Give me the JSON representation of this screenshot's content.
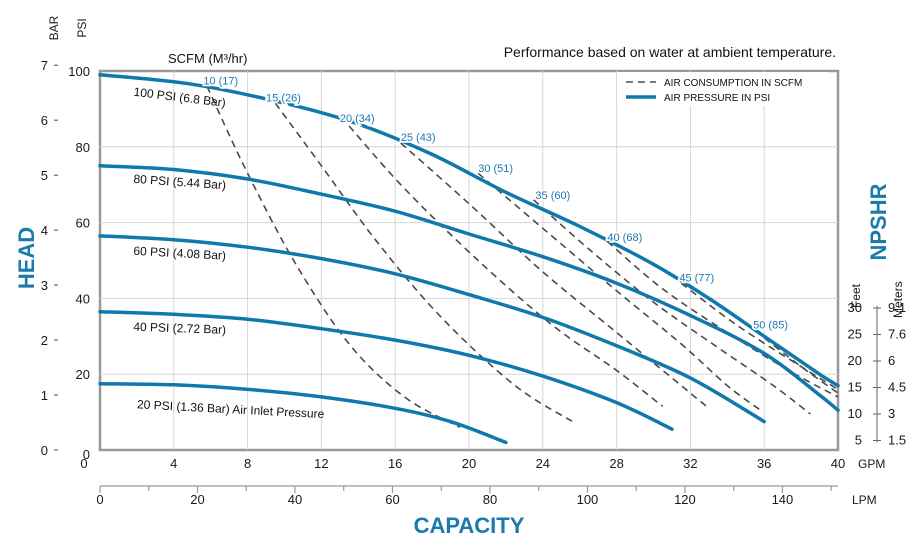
{
  "chart_data": {
    "type": "line",
    "note": "Performance based on water at ambient temperature.",
    "scfm_header": "SCFM (M³/hr)",
    "xlabel": "CAPACITY",
    "ylabel": "HEAD",
    "y2label": "NPSHR",
    "x_gpm": {
      "unit": "GPM",
      "range": [
        0,
        40
      ],
      "ticks": [
        0,
        4,
        8,
        12,
        16,
        20,
        24,
        28,
        32,
        36,
        40
      ]
    },
    "x_lpm": {
      "unit": "LPM",
      "ticks": [
        0,
        20,
        40,
        60,
        80,
        100,
        120,
        140
      ]
    },
    "y_psi": {
      "unit": "PSI",
      "range": [
        0,
        100
      ],
      "ticks": [
        20,
        40,
        60,
        80,
        100
      ],
      "zero_label": "0"
    },
    "y_bar": {
      "unit": "BAR",
      "ticks": [
        0,
        1,
        2,
        3,
        4,
        5,
        6,
        7
      ]
    },
    "npshr_feet": {
      "unit": "Feet",
      "ticks": [
        5,
        10,
        15,
        20,
        25,
        30
      ]
    },
    "npshr_meters": {
      "unit": "Meters",
      "ticks": [
        "1.5",
        "3",
        "4.5",
        "6",
        "7.6",
        "9.1"
      ]
    },
    "grid": true,
    "legend": {
      "position": "top-right",
      "entries": [
        {
          "label": "AIR CONSUMPTION IN SCFM",
          "style": "dashed"
        },
        {
          "label": "AIR PRESSURE IN PSI",
          "style": "solid"
        }
      ]
    },
    "colors": {
      "pressure": "#0f79ab",
      "air": "#4a4a4a",
      "scfm_text": "#1f78b4",
      "axis_label": "#1a7aab",
      "frame": "#999999"
    },
    "series": [
      {
        "name": "100 PSI (6.8 Bar)",
        "points": [
          [
            0,
            99
          ],
          [
            5,
            96.5
          ],
          [
            10,
            91.5
          ],
          [
            14,
            86
          ],
          [
            18,
            78
          ],
          [
            22,
            68
          ],
          [
            26,
            59
          ],
          [
            30,
            49
          ],
          [
            33,
            40
          ],
          [
            36,
            30
          ],
          [
            39,
            20
          ],
          [
            40,
            17
          ]
        ]
      },
      {
        "name": "80 PSI (5.44 Bar)",
        "points": [
          [
            0,
            75
          ],
          [
            4,
            74
          ],
          [
            8,
            71.5
          ],
          [
            12,
            67.5
          ],
          [
            16,
            63
          ],
          [
            20,
            57
          ],
          [
            24,
            51
          ],
          [
            28,
            44
          ],
          [
            32,
            35.5
          ],
          [
            36,
            25.5
          ],
          [
            39,
            14.5
          ],
          [
            40,
            10.5
          ]
        ]
      },
      {
        "name": "60 PSI (4.08 Bar)",
        "points": [
          [
            0,
            56.5
          ],
          [
            4,
            55.5
          ],
          [
            8,
            53.5
          ],
          [
            12,
            50.5
          ],
          [
            16,
            46.5
          ],
          [
            20,
            41
          ],
          [
            24,
            35
          ],
          [
            28,
            27.5
          ],
          [
            32,
            19
          ],
          [
            36,
            7.5
          ]
        ]
      },
      {
        "name": "40 PSI (2.72 Bar)",
        "points": [
          [
            0,
            36.5
          ],
          [
            4,
            35.8
          ],
          [
            8,
            34.5
          ],
          [
            12,
            32
          ],
          [
            16,
            29
          ],
          [
            20,
            25
          ],
          [
            24,
            19.5
          ],
          [
            28,
            12.5
          ],
          [
            31,
            5.5
          ]
        ]
      },
      {
        "name": "20 PSI (1.36 Bar) Air Inlet Pressure",
        "points": [
          [
            0,
            17.5
          ],
          [
            4,
            17.2
          ],
          [
            8,
            16
          ],
          [
            12,
            14
          ],
          [
            16,
            11
          ],
          [
            19,
            7.5
          ],
          [
            22,
            2
          ]
        ]
      }
    ],
    "scfm_lines": [
      {
        "label": "10 (17)",
        "points": [
          [
            5.8,
            96
          ],
          [
            7.8,
            75
          ],
          [
            10.5,
            50
          ],
          [
            13.5,
            28
          ],
          [
            16.5,
            14
          ],
          [
            19.5,
            6
          ]
        ]
      },
      {
        "label": "15 (26)",
        "points": [
          [
            9.5,
            91.5
          ],
          [
            12,
            75
          ],
          [
            15,
            55
          ],
          [
            18.5,
            35
          ],
          [
            22.5,
            17
          ],
          [
            25.8,
            7
          ]
        ]
      },
      {
        "label": "20 (34)",
        "points": [
          [
            13.5,
            85.5
          ],
          [
            16.5,
            69
          ],
          [
            20.5,
            50
          ],
          [
            24.5,
            33
          ],
          [
            28,
            21
          ],
          [
            30.5,
            11.5
          ]
        ]
      },
      {
        "label": "25 (43)",
        "points": [
          [
            16.3,
            81
          ],
          [
            20,
            65
          ],
          [
            24,
            47
          ],
          [
            28,
            31
          ],
          [
            31,
            19
          ],
          [
            33,
            11
          ]
        ]
      },
      {
        "label": "30 (51)",
        "points": [
          [
            20.5,
            73
          ],
          [
            24,
            58.5
          ],
          [
            28,
            42
          ],
          [
            31.5,
            28
          ],
          [
            34,
            17
          ],
          [
            35.8,
            10.5
          ]
        ]
      },
      {
        "label": "35 (60)",
        "points": [
          [
            23.5,
            66
          ],
          [
            26.5,
            53
          ],
          [
            30,
            39
          ],
          [
            33.5,
            27
          ],
          [
            36.5,
            17
          ],
          [
            38.5,
            9.5
          ]
        ]
      },
      {
        "label": "40 (68)",
        "points": [
          [
            27.5,
            55
          ],
          [
            30.5,
            42.5
          ],
          [
            34,
            31
          ],
          [
            37.5,
            20.5
          ],
          [
            40,
            14
          ]
        ]
      },
      {
        "label": "45 (77)",
        "points": [
          [
            31.5,
            44
          ],
          [
            34.5,
            33
          ],
          [
            38,
            22
          ],
          [
            40,
            16
          ]
        ]
      },
      {
        "label": "50 (85)",
        "points": [
          [
            35.5,
            31.5
          ],
          [
            38,
            22
          ],
          [
            40,
            15
          ]
        ]
      }
    ]
  }
}
